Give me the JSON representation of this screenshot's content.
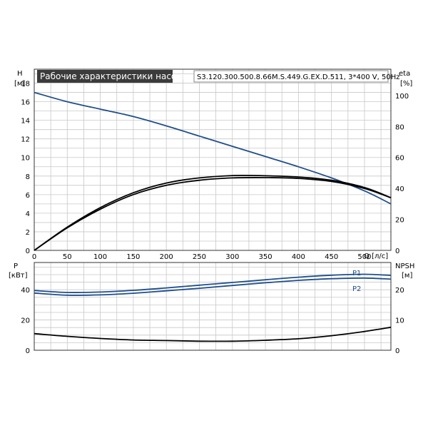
{
  "chart_data": [
    {
      "type": "line",
      "title": "Рабочие характеристики насоса",
      "subtitle": "S3.120.300.500.8.66M.S.449.G.EX.D.511, 3*400 V, 50Hz",
      "xlabel": "Q [л/с]",
      "xlim": [
        0,
        540
      ],
      "x_ticks": [
        0,
        50,
        100,
        150,
        200,
        250,
        300,
        350,
        400,
        450,
        500
      ],
      "ylabel_left": [
        "H",
        "[м]"
      ],
      "ylim_left": [
        0,
        19.5
      ],
      "y_ticks_left": [
        0,
        2,
        4,
        6,
        8,
        10,
        12,
        14,
        16,
        18
      ],
      "ylabel_right": [
        "eta",
        "[%]"
      ],
      "ylim_right": [
        0,
        117
      ],
      "y_ticks_right": [
        0,
        20,
        40,
        60,
        80,
        100
      ],
      "grid": true,
      "series": [
        {
          "axis": "left",
          "color": "#1f4e8c",
          "x": [
            0,
            50,
            100,
            150,
            200,
            250,
            300,
            350,
            400,
            450,
            500,
            540
          ],
          "values": [
            17.0,
            16.0,
            15.2,
            14.4,
            13.4,
            12.3,
            11.2,
            10.1,
            9.0,
            7.8,
            6.4,
            5.0
          ]
        },
        {
          "axis": "right",
          "color": "#000000",
          "x": [
            0,
            50,
            100,
            150,
            200,
            250,
            300,
            350,
            400,
            450,
            500,
            540
          ],
          "values": [
            0,
            14.6,
            26.6,
            36.0,
            42.0,
            45.3,
            46.8,
            47.0,
            46.5,
            44.5,
            40.0,
            34.0
          ]
        },
        {
          "axis": "right",
          "color": "#000000",
          "x": [
            0,
            50,
            100,
            150,
            200,
            250,
            300,
            350,
            400,
            450,
            500,
            540
          ],
          "values": [
            0,
            15.0,
            27.6,
            37.2,
            43.5,
            46.8,
            48.3,
            48.2,
            47.4,
            45.3,
            40.6,
            34.0
          ]
        }
      ]
    },
    {
      "type": "line",
      "xlabel": "",
      "xlim": [
        0,
        540
      ],
      "ylabel_left": [
        "P",
        "[кВт]"
      ],
      "ylim_left": [
        0,
        58
      ],
      "y_ticks_left": [
        0,
        20,
        40
      ],
      "ylabel_right": [
        "NPSH",
        "[м]"
      ],
      "ylim_right": [
        0,
        29
      ],
      "y_ticks_right": [
        0,
        10,
        20
      ],
      "grid": true,
      "series": [
        {
          "name": "P1",
          "axis": "left",
          "color": "#1f4e8c",
          "x": [
            0,
            50,
            100,
            150,
            200,
            250,
            300,
            350,
            400,
            450,
            500,
            540
          ],
          "values": [
            39.5,
            38.2,
            38.5,
            39.6,
            41.2,
            43.0,
            44.8,
            46.6,
            48.3,
            49.6,
            50.2,
            49.5
          ]
        },
        {
          "name": "P2",
          "axis": "left",
          "color": "#1f4e8c",
          "x": [
            0,
            50,
            100,
            150,
            200,
            250,
            300,
            350,
            400,
            450,
            500,
            540
          ],
          "values": [
            37.8,
            36.4,
            36.6,
            37.7,
            39.3,
            41.0,
            42.8,
            44.6,
            46.2,
            47.3,
            47.7,
            47.0
          ]
        },
        {
          "axis": "right",
          "color": "#000000",
          "x": [
            0,
            50,
            100,
            150,
            200,
            250,
            300,
            350,
            400,
            450,
            500,
            540
          ],
          "values": [
            5.5,
            4.6,
            3.9,
            3.4,
            3.2,
            3.0,
            3.0,
            3.3,
            3.8,
            4.8,
            6.2,
            7.6
          ]
        }
      ]
    }
  ]
}
